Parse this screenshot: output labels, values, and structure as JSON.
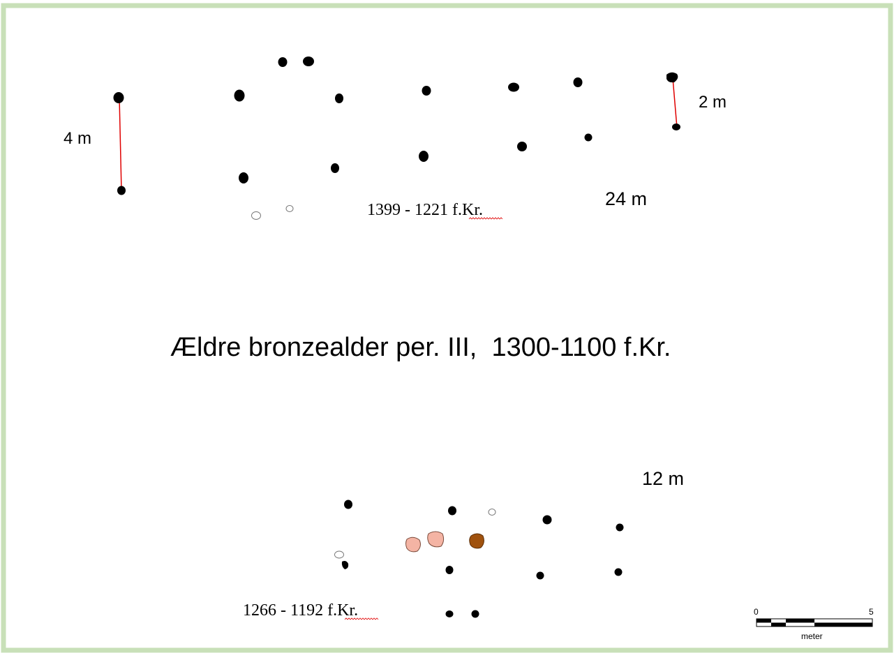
{
  "title": "Ældre bronzealder per. III,  1300-1100 f.Kr.",
  "upper_plan": {
    "date": "1399 - 1221 f.Kr.",
    "length_label": "24 m",
    "width_label_left": "4 m",
    "width_label_right": "2 m"
  },
  "lower_plan": {
    "date": "1266 - 1192 f.Kr.",
    "length_label": "12 m"
  },
  "scale_bar": {
    "start_label": "0",
    "end_label": "5",
    "unit_label": "meter"
  },
  "colors": {
    "frame": "#c8e0b8",
    "posthole": "#000000",
    "measure_line": "#e00000",
    "pit_light": "#f4b4a4",
    "pit_dark": "#a0520e",
    "hollow_outline": "#777777"
  }
}
